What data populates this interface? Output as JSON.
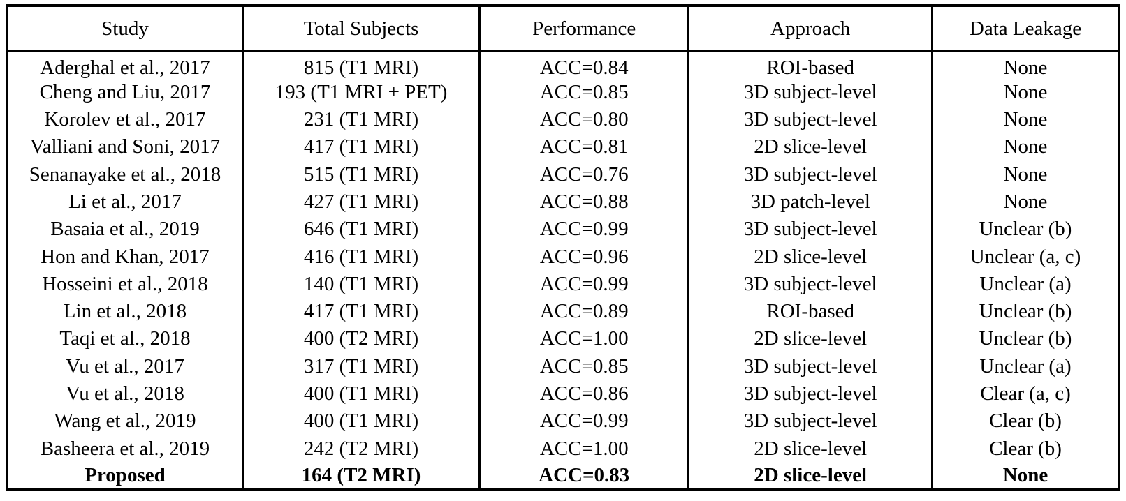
{
  "colors": {
    "background": "#ffffff",
    "text": "#000000",
    "border": "#000000"
  },
  "table": {
    "columns": [
      "Study",
      "Total Subjects",
      "Performance",
      "Approach",
      "Data Leakage"
    ],
    "rows": [
      [
        "Aderghal et al., 2017",
        "815 (T1 MRI)",
        "ACC=0.84",
        "ROI-based",
        "None"
      ],
      [
        "Cheng and Liu, 2017",
        "193 (T1 MRI + PET)",
        "ACC=0.85",
        "3D subject-level",
        "None"
      ],
      [
        "Korolev et al., 2017",
        "231 (T1 MRI)",
        "ACC=0.80",
        "3D subject-level",
        "None"
      ],
      [
        "Valliani and Soni, 2017",
        "417 (T1 MRI)",
        "ACC=0.81",
        "2D slice-level",
        "None"
      ],
      [
        "Senanayake et al., 2018",
        "515 (T1 MRI)",
        "ACC=0.76",
        "3D subject-level",
        "None"
      ],
      [
        "Li et al., 2017",
        "427 (T1 MRI)",
        "ACC=0.88",
        "3D patch-level",
        "None"
      ],
      [
        "Basaia et al., 2019",
        "646 (T1 MRI)",
        "ACC=0.99",
        "3D subject-level",
        "Unclear (b)"
      ],
      [
        "Hon and Khan, 2017",
        "416 (T1 MRI)",
        "ACC=0.96",
        "2D slice-level",
        "Unclear (a, c)"
      ],
      [
        "Hosseini et al., 2018",
        "140 (T1 MRI)",
        "ACC=0.99",
        "3D subject-level",
        "Unclear (a)"
      ],
      [
        "Lin et al., 2018",
        "417 (T1 MRI)",
        "ACC=0.89",
        "ROI-based",
        "Unclear (b)"
      ],
      [
        "Taqi et al., 2018",
        "400 (T2 MRI)",
        "ACC=1.00",
        "2D slice-level",
        "Unclear (b)"
      ],
      [
        "Vu et al., 2017",
        "317 (T1 MRI)",
        "ACC=0.85",
        "3D subject-level",
        "Unclear (a)"
      ],
      [
        "Vu et al., 2018",
        "400 (T1 MRI)",
        "ACC=0.86",
        "3D subject-level",
        "Clear (a, c)"
      ],
      [
        "Wang et al., 2019",
        "400 (T1 MRI)",
        "ACC=0.99",
        "3D subject-level",
        "Clear (b)"
      ],
      [
        "Basheera et al., 2019",
        "242 (T2 MRI)",
        "ACC=1.00",
        "2D slice-level",
        "Clear (b)"
      ],
      [
        "Proposed",
        "164 (T2 MRI)",
        "ACC=0.83",
        "2D slice-level",
        "None"
      ]
    ],
    "bold_row_index": 15
  },
  "chart_data": {
    "type": "table",
    "title": "",
    "columns": [
      "Study",
      "Total Subjects",
      "Performance",
      "Approach",
      "Data Leakage"
    ]
  }
}
